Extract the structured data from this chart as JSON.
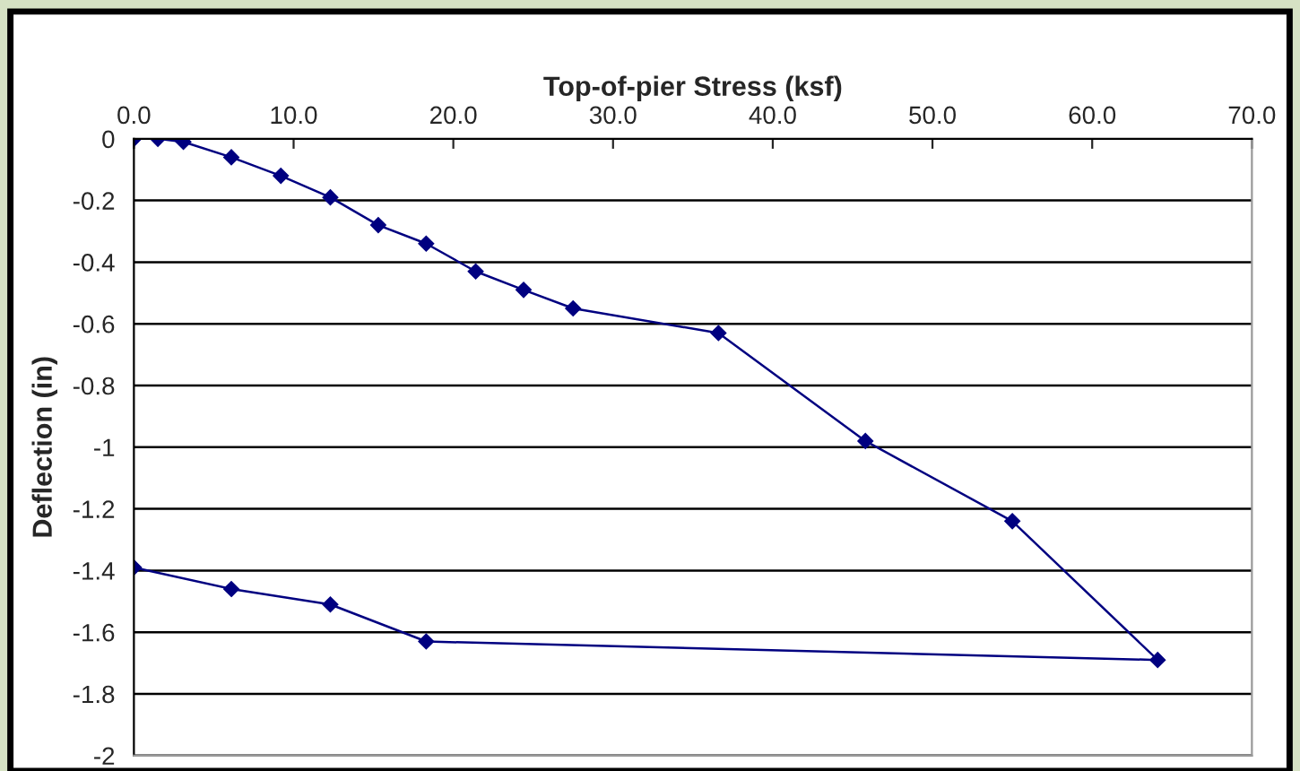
{
  "chart_data": {
    "type": "line",
    "xlabel": "Top-of-pier Stress (ksf)",
    "ylabel": "Deflection (in)",
    "x": [
      0,
      1.5,
      3.1,
      6.1,
      9.2,
      12.3,
      15.3,
      18.3,
      21.4,
      24.4,
      27.5,
      36.6,
      45.8,
      55.0,
      64.1,
      18.3,
      12.3,
      6.1,
      0
    ],
    "series": [
      {
        "color": "#000080",
        "values": [
          0,
          0,
          -0.01,
          -0.06,
          -0.12,
          -0.19,
          -0.28,
          -0.34,
          -0.43,
          -0.49,
          -0.55,
          -0.63,
          -0.98,
          -1.24,
          -1.69,
          -1.63,
          -1.51,
          -1.46,
          -1.39
        ]
      }
    ],
    "xlim": [
      0,
      70
    ],
    "xticks": [
      {
        "value": 0,
        "label": "0.0"
      },
      {
        "value": 10,
        "label": "10.0"
      },
      {
        "value": 20,
        "label": "20.0"
      },
      {
        "value": 30,
        "label": "30.0"
      },
      {
        "value": 40,
        "label": "40.0"
      },
      {
        "value": 50,
        "label": "50.0"
      },
      {
        "value": 60,
        "label": "60.0"
      },
      {
        "value": 70,
        "label": "70.0"
      }
    ],
    "ylim": [
      -2,
      0
    ],
    "yticks": [
      0,
      -0.2,
      -0.4,
      -0.6,
      -0.8,
      -1,
      -1.2,
      -1.4,
      -1.6,
      -1.8,
      -2
    ],
    "grid": "y",
    "marker": "diamond",
    "line_style": "solid"
  }
}
